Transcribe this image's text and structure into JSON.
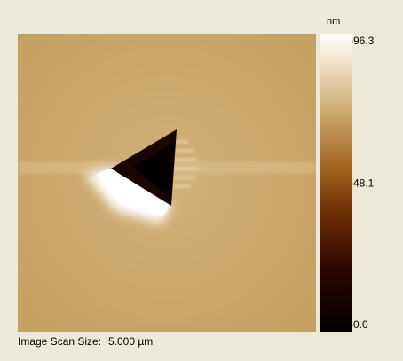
{
  "colorbar": {
    "unit": "nm",
    "range": [
      0,
      96.3
    ],
    "ticks": [
      96.3,
      48.1,
      {
        "value": 0,
        "label": "0.0"
      }
    ]
  },
  "footer": {
    "label": "Image Scan Size:",
    "value": "5.000 µm"
  }
}
